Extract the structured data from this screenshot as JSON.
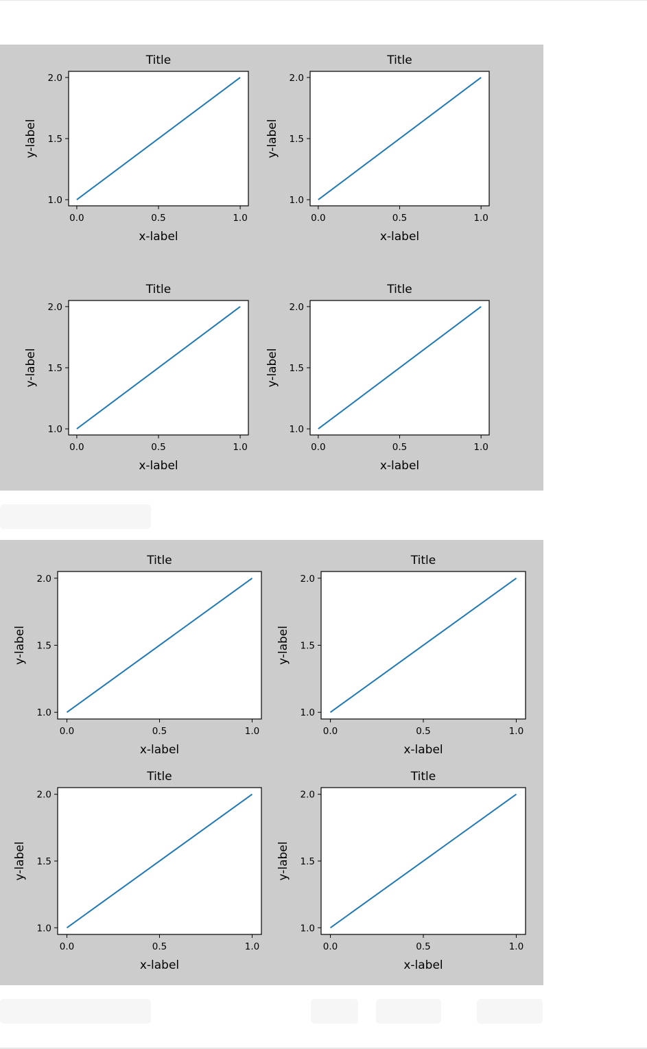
{
  "colors": {
    "figure_bg": "#cccccc",
    "axes_bg": "#ffffff",
    "line": "#1f77b4",
    "placeholder": "#f6f6f6"
  },
  "chart_data": [
    {
      "type": "line",
      "layout": "2x2 subplots, overlapping labels",
      "subplots": [
        {
          "title": "Title",
          "xlabel": "x-label",
          "ylabel": "y-label",
          "x": [
            0,
            1
          ],
          "y": [
            1,
            2
          ],
          "xlim": [
            -0.05,
            1.05
          ],
          "ylim": [
            0.95,
            2.05
          ],
          "xticks": [
            "0.0",
            "0.5",
            "1.0"
          ],
          "yticks": [
            "1.0",
            "1.5",
            "2.0"
          ]
        },
        {
          "title": "Title",
          "xlabel": "x-label",
          "ylabel": "y-label",
          "x": [
            0,
            1
          ],
          "y": [
            1,
            2
          ],
          "xlim": [
            -0.05,
            1.05
          ],
          "ylim": [
            0.95,
            2.05
          ],
          "xticks": [
            "0.0",
            "0.5",
            "1.0"
          ],
          "yticks": [
            "1.0",
            "1.5",
            "2.0"
          ]
        },
        {
          "title": "Title",
          "xlabel": "x-label",
          "ylabel": "y-label",
          "x": [
            0,
            1
          ],
          "y": [
            1,
            2
          ],
          "xlim": [
            -0.05,
            1.05
          ],
          "ylim": [
            0.95,
            2.05
          ],
          "xticks": [
            "0.0",
            "0.5",
            "1.0"
          ],
          "yticks": [
            "1.0",
            "1.5",
            "2.0"
          ]
        },
        {
          "title": "Title",
          "xlabel": "x-label",
          "ylabel": "y-label",
          "x": [
            0,
            1
          ],
          "y": [
            1,
            2
          ],
          "xlim": [
            -0.05,
            1.05
          ],
          "ylim": [
            0.95,
            2.05
          ],
          "xticks": [
            "0.0",
            "0.5",
            "1.0"
          ],
          "yticks": [
            "1.0",
            "1.5",
            "2.0"
          ]
        }
      ]
    },
    {
      "type": "line",
      "layout": "2x2 subplots, tight layout",
      "subplots": [
        {
          "title": "Title",
          "xlabel": "x-label",
          "ylabel": "y-label",
          "x": [
            0,
            1
          ],
          "y": [
            1,
            2
          ],
          "xlim": [
            -0.05,
            1.05
          ],
          "ylim": [
            0.95,
            2.05
          ],
          "xticks": [
            "0.0",
            "0.5",
            "1.0"
          ],
          "yticks": [
            "1.0",
            "1.5",
            "2.0"
          ]
        },
        {
          "title": "Title",
          "xlabel": "x-label",
          "ylabel": "y-label",
          "x": [
            0,
            1
          ],
          "y": [
            1,
            2
          ],
          "xlim": [
            -0.05,
            1.05
          ],
          "ylim": [
            0.95,
            2.05
          ],
          "xticks": [
            "0.0",
            "0.5",
            "1.0"
          ],
          "yticks": [
            "1.0",
            "1.5",
            "2.0"
          ]
        },
        {
          "title": "Title",
          "xlabel": "x-label",
          "ylabel": "y-label",
          "x": [
            0,
            1
          ],
          "y": [
            1,
            2
          ],
          "xlim": [
            -0.05,
            1.05
          ],
          "ylim": [
            0.95,
            2.05
          ],
          "xticks": [
            "0.0",
            "0.5",
            "1.0"
          ],
          "yticks": [
            "1.0",
            "1.5",
            "2.0"
          ]
        },
        {
          "title": "Title",
          "xlabel": "x-label",
          "ylabel": "y-label",
          "x": [
            0,
            1
          ],
          "y": [
            1,
            2
          ],
          "xlim": [
            -0.05,
            1.05
          ],
          "ylim": [
            0.95,
            2.05
          ],
          "xticks": [
            "0.0",
            "0.5",
            "1.0"
          ],
          "yticks": [
            "1.0",
            "1.5",
            "2.0"
          ]
        }
      ]
    }
  ]
}
